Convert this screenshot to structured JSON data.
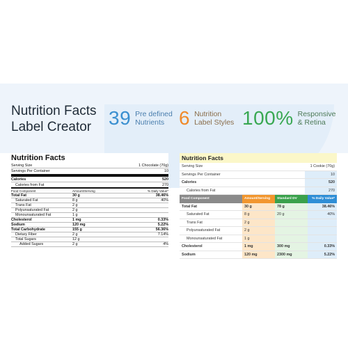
{
  "hero": {
    "title_line1": "Nutrition Facts",
    "title_line2": "Label Creator",
    "stats": [
      {
        "number": "39",
        "line1": "Pre defined",
        "line2": "Nutrients"
      },
      {
        "number": "6",
        "line1": "Nutrition",
        "line2": "Label Styles"
      },
      {
        "number": "100%",
        "line1": "Responsive",
        "line2": "& Retina"
      }
    ]
  },
  "label_classic": {
    "title": "Nutrition Facts",
    "serving_size_label": "Serving Size",
    "serving_size_value": "1 Chocolate (70g)",
    "servings_label": "Servings Per Container",
    "servings_value": "10",
    "calories_label": "Calories",
    "calories_value": "520",
    "cal_fat_label": "Calories from Fat",
    "cal_fat_value": "270",
    "headers": [
      "Food Component",
      "Amount/Serving",
      "% Daily Value*"
    ],
    "rows": [
      {
        "name": "Total Fat",
        "amount": "30 g",
        "dv": "38.46%",
        "style": "b"
      },
      {
        "name": "Saturated Fat",
        "amount": "8 g",
        "dv": "40%",
        "style": "indent"
      },
      {
        "name": "Trans Fat",
        "amount": "2 g",
        "dv": "",
        "style": "indent"
      },
      {
        "name": "Polyunsaturated Fat",
        "amount": "2 g",
        "dv": "",
        "style": "indent"
      },
      {
        "name": "Monounsaturated Fat",
        "amount": "1 g",
        "dv": "",
        "style": "indent"
      },
      {
        "name": "Cholesterol",
        "amount": "1 mg",
        "dv": "0.33%",
        "style": "b"
      },
      {
        "name": "Sodium",
        "amount": "120 mg",
        "dv": "5.22%",
        "style": "b"
      },
      {
        "name": "Total Carbohydrate",
        "amount": "155 g",
        "dv": "56.36%",
        "style": "b"
      },
      {
        "name": "Dietary Fiber",
        "amount": "2 g",
        "dv": "7.14%",
        "style": "indent"
      },
      {
        "name": "Total Sugars",
        "amount": "12 g",
        "dv": "",
        "style": "indent"
      },
      {
        "name": "Added Sugars",
        "amount": "2 g",
        "dv": "4%",
        "style": "indent2"
      }
    ]
  },
  "label_styled": {
    "title": "Nutrition Facts",
    "serving_size_label": "Serving Size",
    "serving_size_value": "1 Cookie (70g)",
    "servings_label": "Servings Per Container",
    "servings_value": "10",
    "calories_label": "Calories",
    "calories_value": "520",
    "cal_fat_label": "Calories from Fat",
    "cal_fat_value": "270",
    "headers": [
      "Food Component",
      "Amount/Serving",
      "Standard DV",
      "% Daily Value*"
    ],
    "rows": [
      {
        "name": "Total Fat",
        "amount": "30 g",
        "std": "78 g",
        "dv": "38.46%",
        "bold": true,
        "ind": false
      },
      {
        "name": "Saturated Fat",
        "amount": "8 g",
        "std": "20 g",
        "dv": "40%",
        "bold": false,
        "ind": true
      },
      {
        "name": "Trans Fat",
        "amount": "2 g",
        "std": "",
        "dv": "",
        "bold": false,
        "ind": true
      },
      {
        "name": "Polyunsaturated Fat",
        "amount": "2 g",
        "std": "",
        "dv": "",
        "bold": false,
        "ind": true
      },
      {
        "name": "Monounsaturated Fat",
        "amount": "1 g",
        "std": "",
        "dv": "",
        "bold": false,
        "ind": true
      },
      {
        "name": "Cholesterol",
        "amount": "1 mg",
        "std": "300 mg",
        "dv": "0.33%",
        "bold": true,
        "ind": false
      },
      {
        "name": "Sodium",
        "amount": "120 mg",
        "std": "2300 mg",
        "dv": "5.22%",
        "bold": true,
        "ind": false
      }
    ]
  },
  "colors": {
    "stat_blue": "#3a8fd0",
    "stat_orange": "#f08a2a",
    "stat_green": "#39a852",
    "title_yellow": "#fbf7c9",
    "head_gray": "#8a8a8a",
    "head_orange": "#f2962e",
    "head_green": "#3aa14c",
    "head_blue": "#2f8ed6"
  }
}
